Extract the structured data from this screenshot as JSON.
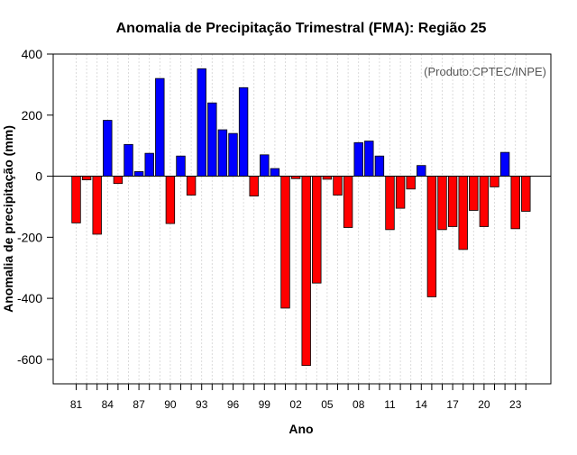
{
  "chart_data": {
    "type": "bar",
    "title": "Anomalia de Precipitação Trimestral (FMA): Região 25",
    "credit": "(Produto:CPTEC/INPE)",
    "xlabel": "Ano",
    "ylabel": "Anomalia de precipitação (mm)",
    "ylim": [
      -680,
      400
    ],
    "yticks": [
      400,
      200,
      0,
      -200,
      -400,
      -600
    ],
    "ytick_labels": [
      "400",
      "200",
      "0",
      "-200",
      "-400",
      "-600"
    ],
    "xtick_labels": [
      "81",
      "84",
      "87",
      "90",
      "93",
      "96",
      "99",
      "02",
      "05",
      "08",
      "11",
      "14",
      "17",
      "20",
      "23"
    ],
    "xtick_years": [
      1981,
      1984,
      1987,
      1990,
      1993,
      1996,
      1999,
      2002,
      2005,
      2008,
      2011,
      2014,
      2017,
      2020,
      2023
    ],
    "grid": true,
    "colors": {
      "positive": "#0000ff",
      "negative": "#ff0000",
      "grid": "#d3d3d3",
      "axis": "#000000"
    },
    "years": [
      1981,
      1982,
      1983,
      1984,
      1985,
      1986,
      1987,
      1988,
      1989,
      1990,
      1991,
      1992,
      1993,
      1994,
      1995,
      1996,
      1997,
      1998,
      1999,
      2000,
      2001,
      2002,
      2003,
      2004,
      2005,
      2006,
      2007,
      2008,
      2009,
      2010,
      2011,
      2012,
      2013,
      2014,
      2015,
      2016,
      2017,
      2018,
      2019,
      2020,
      2021,
      2022,
      2023,
      2024
    ],
    "values": [
      -153,
      -12,
      -190,
      183,
      -24,
      104,
      15,
      75,
      320,
      -155,
      66,
      -62,
      352,
      240,
      152,
      140,
      290,
      -65,
      70,
      25,
      -432,
      -8,
      -620,
      -350,
      -10,
      -62,
      -168,
      110,
      115,
      66,
      -175,
      -105,
      -42,
      35,
      -395,
      -175,
      -165,
      -240,
      -112,
      -165,
      -35,
      78,
      -172,
      -115
    ]
  }
}
